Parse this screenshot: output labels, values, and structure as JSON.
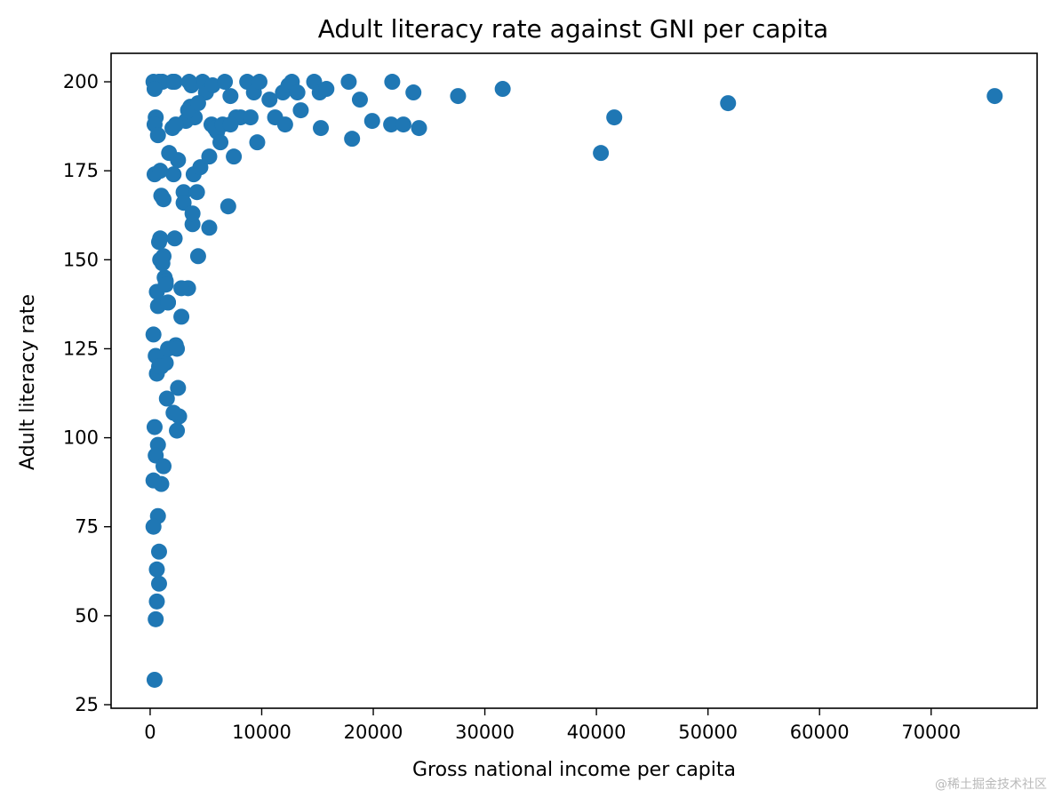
{
  "chart_data": {
    "type": "scatter",
    "title": "Adult literacy rate against GNI per capita",
    "xlabel": "Gross national income per capita",
    "ylabel": "Adult literacy rate",
    "xlim": [
      -3500,
      79500
    ],
    "ylim": [
      24,
      208
    ],
    "xticks": [
      0,
      10000,
      20000,
      30000,
      40000,
      50000,
      60000,
      70000
    ],
    "yticks": [
      25,
      50,
      75,
      100,
      125,
      150,
      175,
      200
    ],
    "marker_color": "#1f77b4",
    "grid": false,
    "x": [
      400,
      500,
      600,
      700,
      800,
      900,
      1000,
      1100,
      1200,
      1300,
      1400,
      1500,
      1600,
      1700,
      2000,
      2100,
      2200,
      2300,
      2400,
      2500,
      2800,
      3000,
      3200,
      3400,
      3600,
      3700,
      3800,
      3900,
      4000,
      4200,
      4300,
      4500,
      4700,
      5000,
      5300,
      5500,
      5600,
      5800,
      6000,
      6300,
      6500,
      6700,
      7000,
      7200,
      7500,
      7700,
      8100,
      8700,
      9000,
      9300,
      9600,
      9800,
      10700,
      11200,
      11900,
      12100,
      12400,
      12700,
      13200,
      13500,
      14700,
      15200,
      15300,
      15800,
      17800,
      18100,
      18800,
      19900,
      21600,
      21700,
      22700,
      23600,
      24100,
      27600,
      31600,
      40400,
      41600,
      51800,
      75700,
      400,
      600,
      700,
      800,
      1000,
      1200,
      1400,
      1600,
      2000,
      2200,
      2600,
      3000,
      3400,
      3800,
      4300,
      5300,
      7200,
      300,
      500,
      800,
      1100,
      1400,
      2100,
      2300,
      2500,
      2800,
      3500,
      300,
      400,
      600,
      700,
      800,
      900,
      1000,
      1200,
      1600,
      2400,
      300,
      500,
      600,
      800,
      900,
      300,
      500,
      400,
      400,
      700
    ],
    "y": [
      174,
      123,
      141,
      137,
      155,
      156,
      168,
      200,
      167,
      145,
      121,
      111,
      138,
      180,
      187,
      174,
      200,
      126,
      102,
      114,
      134,
      169,
      189,
      142,
      193,
      199,
      160,
      174,
      190,
      169,
      151,
      176,
      200,
      197,
      159,
      188,
      199,
      187,
      186,
      183,
      188,
      200,
      165,
      196,
      179,
      190,
      190,
      200,
      190,
      197,
      183,
      200,
      195,
      190,
      197,
      188,
      199,
      200,
      197,
      192,
      200,
      197,
      187,
      198,
      200,
      184,
      195,
      189,
      188,
      200,
      188,
      197,
      187,
      196,
      198,
      180,
      190,
      194,
      196,
      32,
      118,
      98,
      68,
      87,
      151,
      144,
      138,
      200,
      156,
      106,
      166,
      192,
      163,
      194,
      179,
      188,
      129,
      95,
      120,
      149,
      143,
      107,
      188,
      178,
      142,
      200,
      88,
      103,
      63,
      78,
      59,
      150,
      120,
      92,
      125,
      125,
      75,
      49,
      54,
      200,
      175,
      200,
      190,
      188,
      198,
      185
    ]
  },
  "watermark": "@稀土掘金技术社区"
}
